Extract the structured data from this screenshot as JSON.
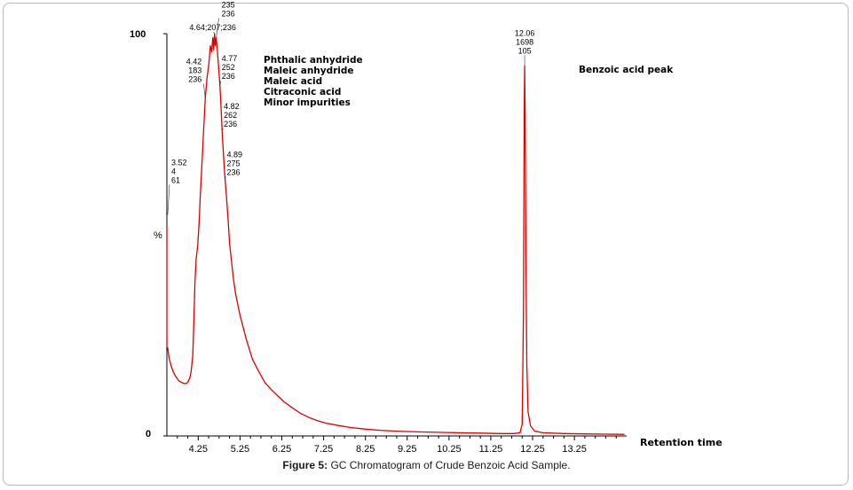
{
  "figure_label": "Figure 5:",
  "figure_caption": "GC Chromatogram of Crude Benzoic Acid Sample.",
  "colors": {
    "trace": "#dd0000",
    "axis": "#000000",
    "text": "#000000"
  },
  "chart_data": {
    "type": "line",
    "title": "",
    "xlabel": "Retention time",
    "ylabel": "%",
    "xlim": [
      3.5,
      14.5
    ],
    "ylim": [
      0,
      100
    ],
    "grid": false,
    "x_ticks": [
      4.25,
      5.25,
      6.25,
      7.25,
      8.25,
      9.25,
      10.25,
      11.25,
      12.25,
      13.25
    ],
    "x_tick_labels": [
      "4.25",
      "5.25",
      "6.25",
      "7.25",
      "8.25",
      "9.25",
      "10.25",
      "11.25",
      "12.25",
      "13.25"
    ],
    "y_ticks": [
      0,
      100
    ],
    "y_tick_labels": [
      "0",
      "100"
    ],
    "series": [
      {
        "points": [
          [
            3.52,
            22
          ],
          [
            3.55,
            19.5
          ],
          [
            3.6,
            17.5
          ],
          [
            3.65,
            16
          ],
          [
            3.7,
            15
          ],
          [
            3.75,
            14.2
          ],
          [
            3.8,
            13.6
          ],
          [
            3.85,
            13.3
          ],
          [
            3.9,
            13.1
          ],
          [
            3.95,
            13
          ],
          [
            4.0,
            13.3
          ],
          [
            4.05,
            14.5
          ],
          [
            4.08,
            16
          ],
          [
            4.12,
            20
          ],
          [
            4.15,
            30
          ],
          [
            4.17,
            38
          ],
          [
            4.2,
            44
          ],
          [
            4.24,
            47.5
          ],
          [
            4.27,
            53
          ],
          [
            4.3,
            60
          ],
          [
            4.34,
            68
          ],
          [
            4.38,
            76
          ],
          [
            4.42,
            84
          ],
          [
            4.46,
            89
          ],
          [
            4.5,
            92
          ],
          [
            4.54,
            97
          ],
          [
            4.57,
            95.5
          ],
          [
            4.6,
            99
          ],
          [
            4.62,
            96
          ],
          [
            4.64,
            100
          ],
          [
            4.66,
            97
          ],
          [
            4.68,
            99
          ],
          [
            4.72,
            94
          ],
          [
            4.77,
            87
          ],
          [
            4.8,
            81
          ],
          [
            4.82,
            76
          ],
          [
            4.86,
            69
          ],
          [
            4.89,
            64
          ],
          [
            4.93,
            59
          ],
          [
            4.97,
            53
          ],
          [
            5.0,
            48
          ],
          [
            5.05,
            43
          ],
          [
            5.1,
            38.5
          ],
          [
            5.15,
            35
          ],
          [
            5.25,
            30
          ],
          [
            5.4,
            24
          ],
          [
            5.55,
            19
          ],
          [
            5.7,
            16
          ],
          [
            5.85,
            13.2
          ],
          [
            6.0,
            11.5
          ],
          [
            6.15,
            10
          ],
          [
            6.3,
            8.5
          ],
          [
            6.5,
            7
          ],
          [
            6.7,
            5.6
          ],
          [
            6.9,
            4.6
          ],
          [
            7.1,
            3.8
          ],
          [
            7.3,
            3.2
          ],
          [
            7.6,
            2.6
          ],
          [
            7.9,
            2.1
          ],
          [
            8.25,
            1.7
          ],
          [
            8.6,
            1.4
          ],
          [
            9.0,
            1.2
          ],
          [
            9.25,
            1.1
          ],
          [
            9.6,
            1.0
          ],
          [
            10.0,
            0.9
          ],
          [
            10.5,
            0.8
          ],
          [
            11.0,
            0.7
          ],
          [
            11.5,
            0.6
          ],
          [
            11.8,
            0.6
          ],
          [
            11.95,
            0.8
          ],
          [
            12.0,
            3
          ],
          [
            12.03,
            30
          ],
          [
            12.05,
            80
          ],
          [
            12.06,
            92
          ],
          [
            12.07,
            80
          ],
          [
            12.09,
            45
          ],
          [
            12.11,
            18
          ],
          [
            12.14,
            6
          ],
          [
            12.2,
            2.5
          ],
          [
            12.3,
            1.2
          ],
          [
            12.5,
            0.8
          ],
          [
            13.0,
            0.6
          ],
          [
            13.5,
            0.5
          ],
          [
            14.0,
            0.45
          ],
          [
            14.45,
            0.4
          ]
        ]
      }
    ],
    "peak_labels": [
      {
        "x": 3.52,
        "y": 55,
        "lines": [
          "3.52",
          "4",
          "61"
        ]
      },
      {
        "x": 4.42,
        "y": 84,
        "lines": [
          "4.42",
          "183",
          "236"
        ]
      },
      {
        "x": 4.64,
        "y": 100,
        "lines": [
          "4.64;207;236"
        ]
      },
      {
        "x": 4.68,
        "y": 99,
        "lines": [
          "4.68",
          "235",
          "236"
        ]
      },
      {
        "x": 4.77,
        "y": 87,
        "lines": [
          "4.77",
          "252",
          "236"
        ]
      },
      {
        "x": 4.82,
        "y": 76,
        "lines": [
          "4.82",
          "262",
          "236"
        ]
      },
      {
        "x": 4.89,
        "y": 64,
        "lines": [
          "4.89",
          "275",
          "236"
        ]
      },
      {
        "x": 12.06,
        "y": 92,
        "lines": [
          "12.06",
          "1698",
          "105"
        ]
      }
    ],
    "annotations": [
      "Phthalic anhydride",
      "Maleic anhydride",
      "Maleic acid",
      "Citraconic acid",
      "Minor impurities"
    ],
    "side_annotation": "Benzoic acid peak"
  }
}
